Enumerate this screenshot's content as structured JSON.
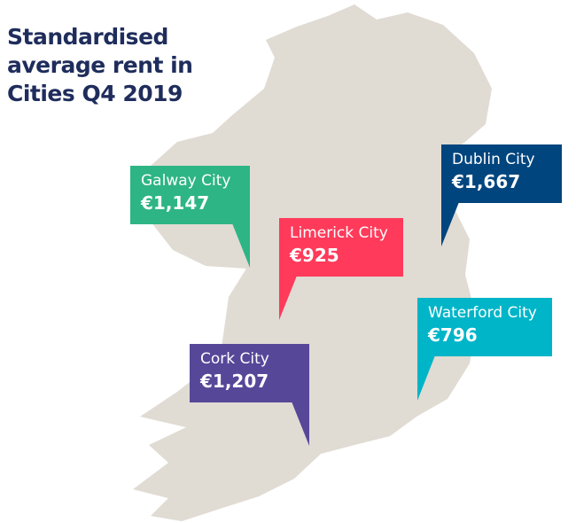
{
  "title": "Standardised average rent in Cities Q4 2019",
  "colors": {
    "land": "#e0dbd3",
    "title": "#1f2d5c"
  },
  "cities": [
    {
      "name": "Galway City",
      "rent": "€1,147",
      "color": "#2eb585"
    },
    {
      "name": "Dublin City",
      "rent": "€1,667",
      "color": "#00457e"
    },
    {
      "name": "Limerick City",
      "rent": "€925",
      "color": "#ff3a5a"
    },
    {
      "name": "Waterford City",
      "rent": "€796",
      "color": "#00b5c8"
    },
    {
      "name": "Cork City",
      "rent": "€1,207",
      "color": "#574799"
    }
  ]
}
